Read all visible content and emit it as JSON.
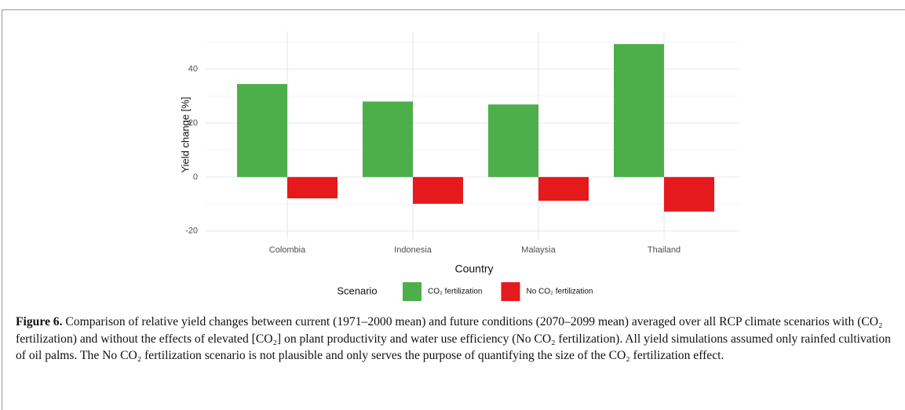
{
  "chart_data": {
    "type": "bar",
    "categories": [
      "Colombia",
      "Indonesia",
      "Malaysia",
      "Thailand"
    ],
    "x_label": "Country",
    "y_label": "Yield change [%]",
    "series": [
      {
        "name": "CO₂ fertilization",
        "color": "#4daf4a",
        "values": [
          34.5,
          28,
          26.9,
          49.3
        ]
      },
      {
        "name": "No CO₂ fertilization",
        "color": "#e41a1c",
        "values": [
          -7.9,
          -9.9,
          -8.8,
          -12.8
        ]
      }
    ],
    "ylim": [
      -23,
      54
    ],
    "yticks": [
      -20,
      0,
      20,
      40
    ],
    "yminor": [
      -10,
      10,
      30,
      50
    ],
    "grid": true,
    "legend_title": "Scenario",
    "legend": "bottom"
  },
  "caption": {
    "label": "Figure 6.",
    "text": "Comparison of relative yield changes between current (1971–2000 mean) and future conditions (2070–2099 mean) averaged over all RCP climate scenarios with (CO₂ fertilization) and without the effects of elevated [CO₂] on plant productivity and water use efficiency (No CO₂ fertilization). All yield simulations assumed only rainfed cultivation of oil palms. The No CO₂ fertilization scenario is not plausible and only serves the purpose of quantifying the size of the CO₂ fertilization effect."
  }
}
